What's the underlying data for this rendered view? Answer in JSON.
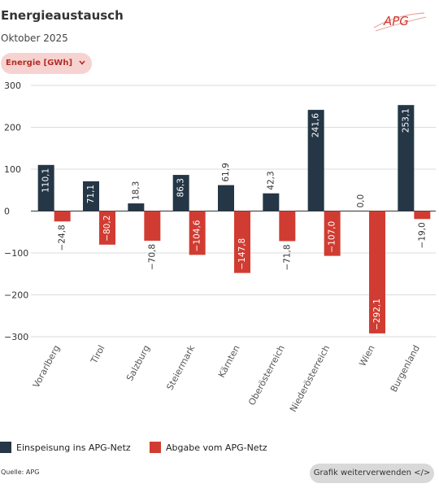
{
  "header": {
    "title": "Energieaustausch",
    "subtitle": "Oktober 2025",
    "logo_text": "APG"
  },
  "filter": {
    "selected": "Energie [GWh]",
    "icon": "chevron-down-icon"
  },
  "legend": {
    "items": [
      {
        "label": "Einspeisung ins APG-Netz",
        "color": "#253746"
      },
      {
        "label": "Abgabe vom APG-Netz",
        "color": "#d13c32"
      }
    ]
  },
  "footer": {
    "source": "Quelle: APG",
    "reuse_label": "Grafik weiterverwenden </>"
  },
  "chart_data": {
    "type": "bar",
    "categories": [
      "Vorarlberg",
      "Tirol",
      "Salzburg",
      "Steiermark",
      "Kärnten",
      "Oberösterreich",
      "Niederösterreich",
      "Wien",
      "Burgenland"
    ],
    "series": [
      {
        "name": "Einspeisung ins APG-Netz",
        "color": "#253746",
        "values": [
          110.1,
          71.1,
          18.3,
          86.3,
          61.9,
          42.3,
          241.6,
          0.0,
          253.1
        ],
        "labels": [
          "110,1",
          "71,1",
          "18,3",
          "86,3",
          "61,9",
          "42,3",
          "241,6",
          "0,0",
          "253,1"
        ]
      },
      {
        "name": "Abgabe vom APG-Netz",
        "color": "#d13c32",
        "values": [
          -24.8,
          -80.2,
          -70.8,
          -104.6,
          -147.8,
          -71.8,
          -107.0,
          -292.1,
          -19.0
        ],
        "labels": [
          "−24,8",
          "−80,2",
          "−70,8",
          "−104,6",
          "−147,8",
          "−71,8",
          "−107,0",
          "−292,1",
          "−19,0"
        ]
      }
    ],
    "ylim": [
      -300,
      300
    ],
    "yticks": [
      300,
      200,
      100,
      0,
      -100,
      -200,
      -300
    ],
    "ytick_labels": [
      "300",
      "200",
      "100",
      "0",
      "−100",
      "−200",
      "−300"
    ],
    "grid": true,
    "legend_position": "bottom-left"
  }
}
